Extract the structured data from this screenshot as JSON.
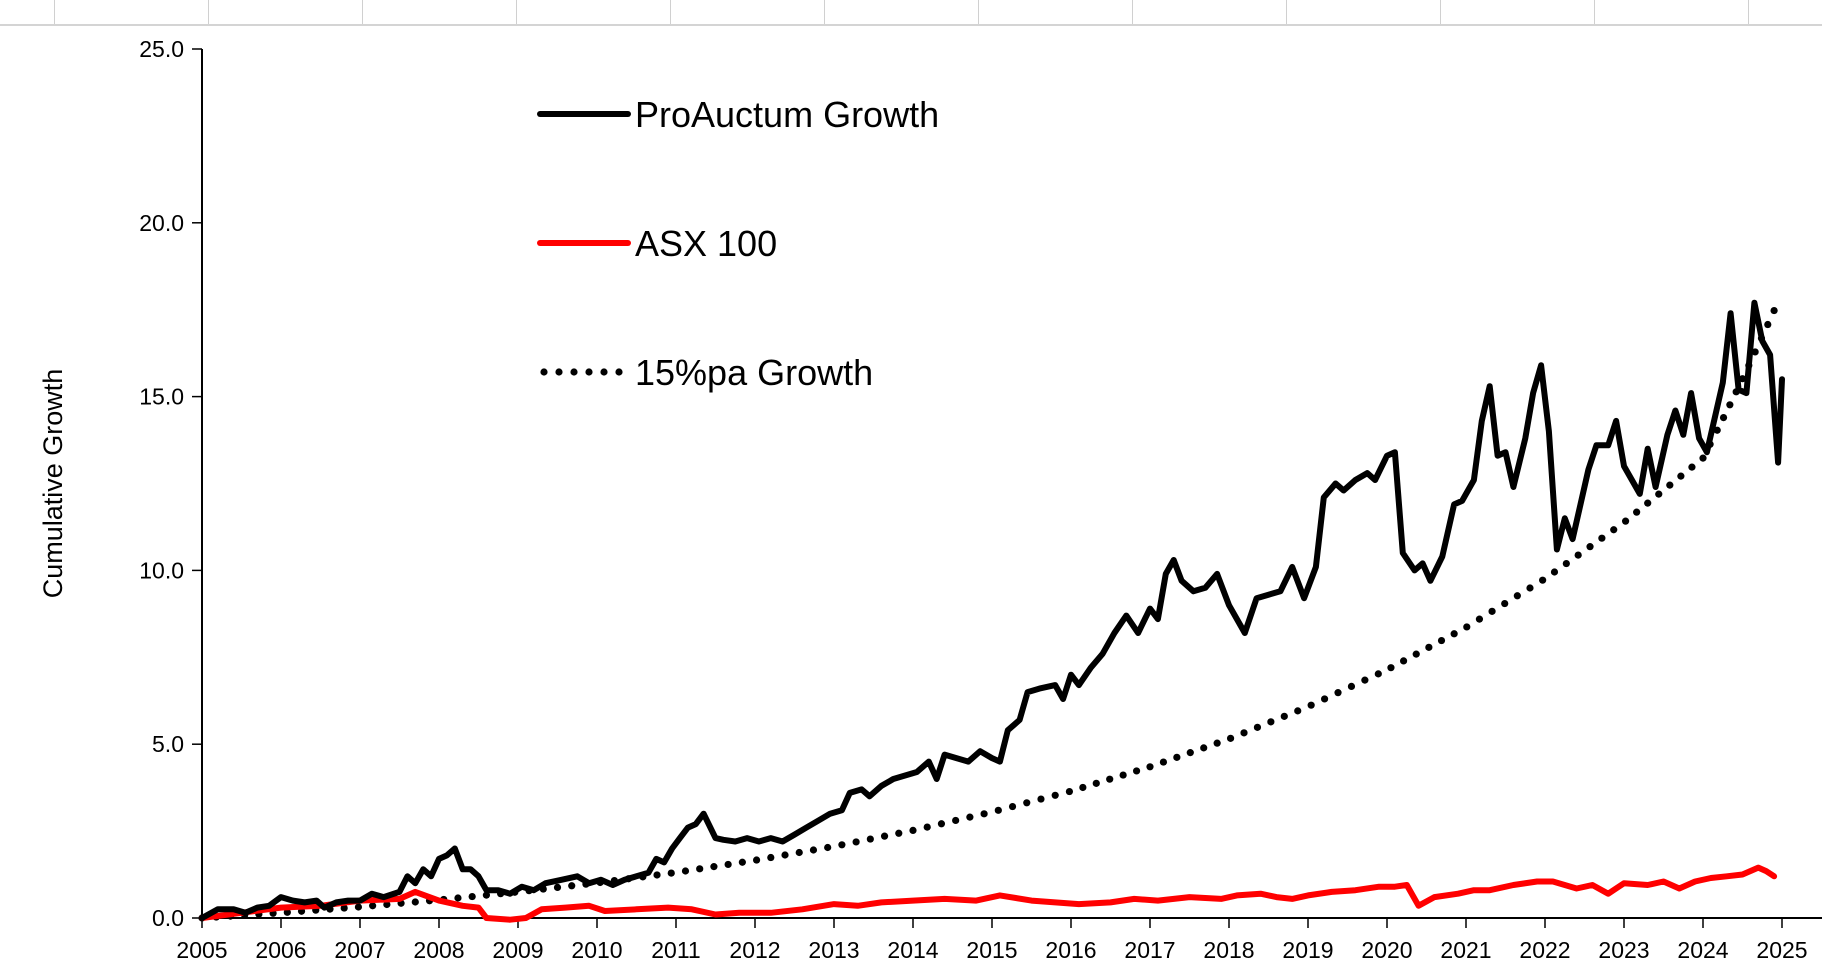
{
  "chart_data": {
    "type": "line",
    "title": "",
    "xlabel": "",
    "ylabel": "Cumulative Growth",
    "xlim": [
      2005,
      2025
    ],
    "ylim": [
      0,
      25
    ],
    "x_ticks": [
      "2005",
      "2006",
      "2007",
      "2008",
      "2009",
      "2010",
      "2011",
      "2012",
      "2013",
      "2014",
      "2015",
      "2016",
      "2017",
      "2018",
      "2019",
      "2020",
      "2021",
      "2022",
      "2023",
      "2024",
      "2025"
    ],
    "y_ticks": [
      "0.0",
      "5.0",
      "10.0",
      "15.0",
      "20.0",
      "25.0"
    ],
    "grid": false,
    "legend_position": "top-left",
    "series": [
      {
        "name": "ProAuctum Growth",
        "color": "#000000",
        "style": "solid",
        "points": [
          [
            2005.0,
            0.0
          ],
          [
            2005.2,
            0.25
          ],
          [
            2005.4,
            0.25
          ],
          [
            2005.55,
            0.15
          ],
          [
            2005.7,
            0.3
          ],
          [
            2005.85,
            0.35
          ],
          [
            2006.0,
            0.6
          ],
          [
            2006.15,
            0.5
          ],
          [
            2006.3,
            0.45
          ],
          [
            2006.45,
            0.5
          ],
          [
            2006.55,
            0.3
          ],
          [
            2006.7,
            0.45
          ],
          [
            2006.85,
            0.5
          ],
          [
            2007.0,
            0.5
          ],
          [
            2007.15,
            0.7
          ],
          [
            2007.3,
            0.6
          ],
          [
            2007.5,
            0.75
          ],
          [
            2007.6,
            1.2
          ],
          [
            2007.7,
            1.0
          ],
          [
            2007.8,
            1.4
          ],
          [
            2007.9,
            1.2
          ],
          [
            2008.0,
            1.7
          ],
          [
            2008.1,
            1.8
          ],
          [
            2008.2,
            2.0
          ],
          [
            2008.3,
            1.4
          ],
          [
            2008.4,
            1.4
          ],
          [
            2008.5,
            1.2
          ],
          [
            2008.6,
            0.8
          ],
          [
            2008.75,
            0.8
          ],
          [
            2008.9,
            0.7
          ],
          [
            2009.05,
            0.9
          ],
          [
            2009.2,
            0.8
          ],
          [
            2009.35,
            1.0
          ],
          [
            2009.55,
            1.1
          ],
          [
            2009.75,
            1.2
          ],
          [
            2009.9,
            1.0
          ],
          [
            2010.05,
            1.1
          ],
          [
            2010.2,
            0.95
          ],
          [
            2010.35,
            1.1
          ],
          [
            2010.5,
            1.2
          ],
          [
            2010.65,
            1.3
          ],
          [
            2010.75,
            1.7
          ],
          [
            2010.85,
            1.6
          ],
          [
            2010.95,
            2.0
          ],
          [
            2011.05,
            2.3
          ],
          [
            2011.15,
            2.6
          ],
          [
            2011.25,
            2.7
          ],
          [
            2011.35,
            3.0
          ],
          [
            2011.5,
            2.3
          ],
          [
            2011.6,
            2.25
          ],
          [
            2011.75,
            2.2
          ],
          [
            2011.9,
            2.3
          ],
          [
            2012.05,
            2.2
          ],
          [
            2012.2,
            2.3
          ],
          [
            2012.35,
            2.2
          ],
          [
            2012.5,
            2.4
          ],
          [
            2012.65,
            2.6
          ],
          [
            2012.8,
            2.8
          ],
          [
            2012.95,
            3.0
          ],
          [
            2013.1,
            3.1
          ],
          [
            2013.2,
            3.6
          ],
          [
            2013.35,
            3.7
          ],
          [
            2013.45,
            3.5
          ],
          [
            2013.6,
            3.8
          ],
          [
            2013.75,
            4.0
          ],
          [
            2013.9,
            4.1
          ],
          [
            2014.05,
            4.2
          ],
          [
            2014.2,
            4.5
          ],
          [
            2014.3,
            4.0
          ],
          [
            2014.4,
            4.7
          ],
          [
            2014.55,
            4.6
          ],
          [
            2014.7,
            4.5
          ],
          [
            2014.85,
            4.8
          ],
          [
            2015.0,
            4.6
          ],
          [
            2015.1,
            4.5
          ],
          [
            2015.2,
            5.4
          ],
          [
            2015.35,
            5.7
          ],
          [
            2015.45,
            6.5
          ],
          [
            2015.6,
            6.6
          ],
          [
            2015.8,
            6.7
          ],
          [
            2015.9,
            6.3
          ],
          [
            2016.0,
            7.0
          ],
          [
            2016.1,
            6.7
          ],
          [
            2016.25,
            7.2
          ],
          [
            2016.4,
            7.6
          ],
          [
            2016.55,
            8.2
          ],
          [
            2016.7,
            8.7
          ],
          [
            2016.85,
            8.2
          ],
          [
            2017.0,
            8.9
          ],
          [
            2017.1,
            8.6
          ],
          [
            2017.2,
            9.9
          ],
          [
            2017.3,
            10.3
          ],
          [
            2017.4,
            9.7
          ],
          [
            2017.55,
            9.4
          ],
          [
            2017.7,
            9.5
          ],
          [
            2017.85,
            9.9
          ],
          [
            2018.0,
            9.0
          ],
          [
            2018.2,
            8.2
          ],
          [
            2018.35,
            9.2
          ],
          [
            2018.5,
            9.3
          ],
          [
            2018.65,
            9.4
          ],
          [
            2018.8,
            10.1
          ],
          [
            2018.95,
            9.2
          ],
          [
            2019.1,
            10.1
          ],
          [
            2019.2,
            12.1
          ],
          [
            2019.35,
            12.5
          ],
          [
            2019.45,
            12.3
          ],
          [
            2019.6,
            12.6
          ],
          [
            2019.75,
            12.8
          ],
          [
            2019.85,
            12.6
          ],
          [
            2020.0,
            13.3
          ],
          [
            2020.1,
            13.4
          ],
          [
            2020.2,
            10.5
          ],
          [
            2020.35,
            10.0
          ],
          [
            2020.45,
            10.2
          ],
          [
            2020.55,
            9.7
          ],
          [
            2020.7,
            10.4
          ],
          [
            2020.85,
            11.9
          ],
          [
            2020.95,
            12.0
          ],
          [
            2021.1,
            12.6
          ],
          [
            2021.2,
            14.3
          ],
          [
            2021.3,
            15.3
          ],
          [
            2021.4,
            13.3
          ],
          [
            2021.5,
            13.4
          ],
          [
            2021.6,
            12.4
          ],
          [
            2021.75,
            13.8
          ],
          [
            2021.85,
            15.1
          ],
          [
            2021.95,
            15.9
          ],
          [
            2022.05,
            14.0
          ],
          [
            2022.15,
            10.6
          ],
          [
            2022.25,
            11.5
          ],
          [
            2022.35,
            10.9
          ],
          [
            2022.55,
            12.9
          ],
          [
            2022.65,
            13.6
          ],
          [
            2022.8,
            13.6
          ],
          [
            2022.9,
            14.3
          ],
          [
            2023.0,
            13.0
          ],
          [
            2023.1,
            12.6
          ],
          [
            2023.2,
            12.2
          ],
          [
            2023.3,
            13.5
          ],
          [
            2023.4,
            12.4
          ],
          [
            2023.55,
            13.9
          ],
          [
            2023.65,
            14.6
          ],
          [
            2023.75,
            13.9
          ],
          [
            2023.85,
            15.1
          ],
          [
            2023.95,
            13.8
          ],
          [
            2024.05,
            13.4
          ],
          [
            2024.25,
            15.4
          ],
          [
            2024.35,
            17.4
          ],
          [
            2024.45,
            15.2
          ],
          [
            2024.55,
            15.1
          ],
          [
            2024.65,
            17.7
          ],
          [
            2024.75,
            16.6
          ],
          [
            2024.85,
            16.2
          ],
          [
            2024.95,
            13.1
          ],
          [
            2025.0,
            15.5
          ]
        ]
      },
      {
        "name": "ASX 100",
        "color": "#ff0000",
        "style": "solid",
        "points": [
          [
            2005.0,
            0.0
          ],
          [
            2005.5,
            0.15
          ],
          [
            2006.0,
            0.3
          ],
          [
            2006.5,
            0.35
          ],
          [
            2007.0,
            0.5
          ],
          [
            2007.5,
            0.55
          ],
          [
            2007.7,
            0.75
          ],
          [
            2008.0,
            0.5
          ],
          [
            2008.3,
            0.35
          ],
          [
            2008.5,
            0.3
          ],
          [
            2008.6,
            0.0
          ],
          [
            2008.9,
            -0.1
          ],
          [
            2009.1,
            0.0
          ],
          [
            2009.3,
            0.25
          ],
          [
            2009.6,
            0.3
          ],
          [
            2009.9,
            0.35
          ],
          [
            2010.1,
            0.2
          ],
          [
            2010.5,
            0.25
          ],
          [
            2010.9,
            0.3
          ],
          [
            2011.2,
            0.25
          ],
          [
            2011.5,
            0.1
          ],
          [
            2011.8,
            0.15
          ],
          [
            2012.2,
            0.15
          ],
          [
            2012.6,
            0.25
          ],
          [
            2013.0,
            0.4
          ],
          [
            2013.3,
            0.35
          ],
          [
            2013.6,
            0.45
          ],
          [
            2014.0,
            0.5
          ],
          [
            2014.4,
            0.55
          ],
          [
            2014.8,
            0.5
          ],
          [
            2015.1,
            0.65
          ],
          [
            2015.5,
            0.5
          ],
          [
            2015.8,
            0.45
          ],
          [
            2016.1,
            0.4
          ],
          [
            2016.5,
            0.45
          ],
          [
            2016.8,
            0.55
          ],
          [
            2017.1,
            0.5
          ],
          [
            2017.5,
            0.6
          ],
          [
            2017.9,
            0.55
          ],
          [
            2018.1,
            0.65
          ],
          [
            2018.4,
            0.7
          ],
          [
            2018.6,
            0.6
          ],
          [
            2018.8,
            0.55
          ],
          [
            2019.0,
            0.65
          ],
          [
            2019.3,
            0.75
          ],
          [
            2019.6,
            0.8
          ],
          [
            2019.9,
            0.9
          ],
          [
            2020.1,
            0.9
          ],
          [
            2020.25,
            0.95
          ],
          [
            2020.4,
            0.35
          ],
          [
            2020.6,
            0.6
          ],
          [
            2020.9,
            0.7
          ],
          [
            2021.1,
            0.8
          ],
          [
            2021.3,
            0.8
          ],
          [
            2021.6,
            0.95
          ],
          [
            2021.9,
            1.05
          ],
          [
            2022.1,
            1.05
          ],
          [
            2022.4,
            0.85
          ],
          [
            2022.6,
            0.95
          ],
          [
            2022.8,
            0.7
          ],
          [
            2023.0,
            1.0
          ],
          [
            2023.3,
            0.95
          ],
          [
            2023.5,
            1.05
          ],
          [
            2023.7,
            0.85
          ],
          [
            2023.9,
            1.05
          ],
          [
            2024.1,
            1.15
          ],
          [
            2024.3,
            1.2
          ],
          [
            2024.5,
            1.25
          ],
          [
            2024.7,
            1.45
          ],
          [
            2024.8,
            1.35
          ],
          [
            2024.9,
            1.2
          ]
        ]
      },
      {
        "name": "15%pa Growth",
        "color": "#000000",
        "style": "dotted",
        "points": [
          [
            2005.0,
            0.0
          ],
          [
            2006.0,
            0.15
          ],
          [
            2007.0,
            0.32
          ],
          [
            2008.0,
            0.52
          ],
          [
            2009.0,
            0.75
          ],
          [
            2010.0,
            1.01
          ],
          [
            2011.0,
            1.31
          ],
          [
            2012.0,
            1.66
          ],
          [
            2013.0,
            2.06
          ],
          [
            2014.0,
            2.52
          ],
          [
            2015.0,
            3.05
          ],
          [
            2016.0,
            3.65
          ],
          [
            2017.0,
            4.35
          ],
          [
            2018.0,
            5.15
          ],
          [
            2019.0,
            6.08
          ],
          [
            2020.0,
            7.14
          ],
          [
            2021.0,
            8.36
          ],
          [
            2022.0,
            9.76
          ],
          [
            2023.0,
            11.38
          ],
          [
            2024.0,
            13.23
          ],
          [
            2025.0,
            15.37
          ]
        ]
      }
    ]
  }
}
